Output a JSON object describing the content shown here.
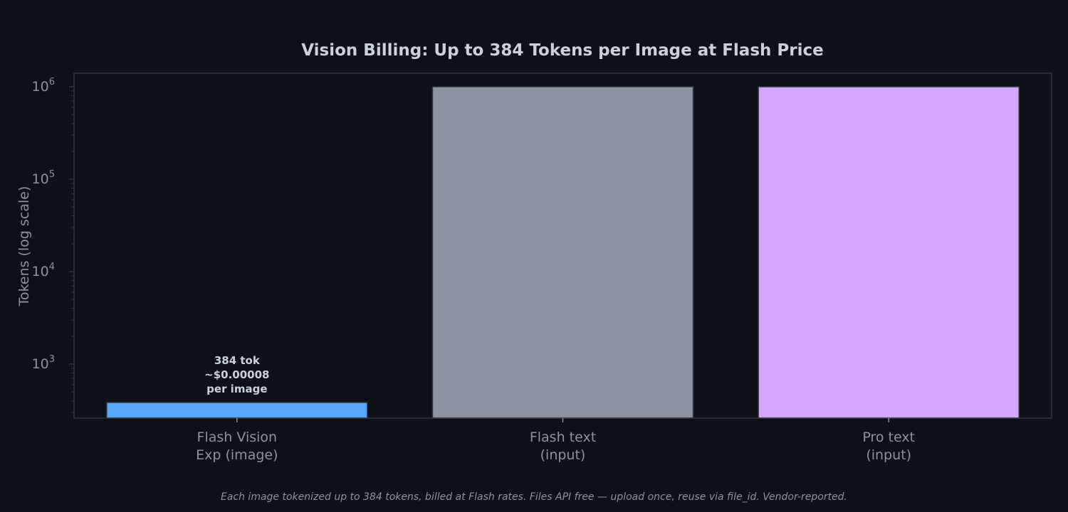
{
  "chart_data": {
    "type": "bar",
    "title": "Vision Billing: Up to 384 Tokens per Image at Flash Price",
    "ylabel": "Tokens (log scale)",
    "xlabel": "",
    "yscale": "log",
    "ylim": [
      260,
      1400000
    ],
    "yticks": [
      {
        "base": "10",
        "exp": "3"
      },
      {
        "base": "10",
        "exp": "4"
      },
      {
        "base": "10",
        "exp": "5"
      },
      {
        "base": "10",
        "exp": "6"
      }
    ],
    "categories": [
      [
        "Flash Vision",
        "Exp (image)"
      ],
      [
        "Flash text",
        "(input)"
      ],
      [
        "Pro text",
        "(input)"
      ]
    ],
    "values": [
      384,
      1000000,
      1000000
    ],
    "bar_colors": [
      "#58a6ff",
      "#8b949e",
      "#d2a8ff"
    ],
    "annotations": [
      {
        "category_index": 0,
        "lines": [
          "384 tok",
          "~$0.00008",
          "per image"
        ]
      }
    ],
    "grid": false,
    "legend": "none"
  },
  "footnote": "Each image tokenized up to 384 tokens, billed at Flash rates. Files API free — upload once, reuse via file_id. Vendor-reported.",
  "colors": {
    "background": "#0d1017",
    "axes_border": "#30363d",
    "text": "#c9d1d9",
    "muted_text": "#8b92a0"
  }
}
